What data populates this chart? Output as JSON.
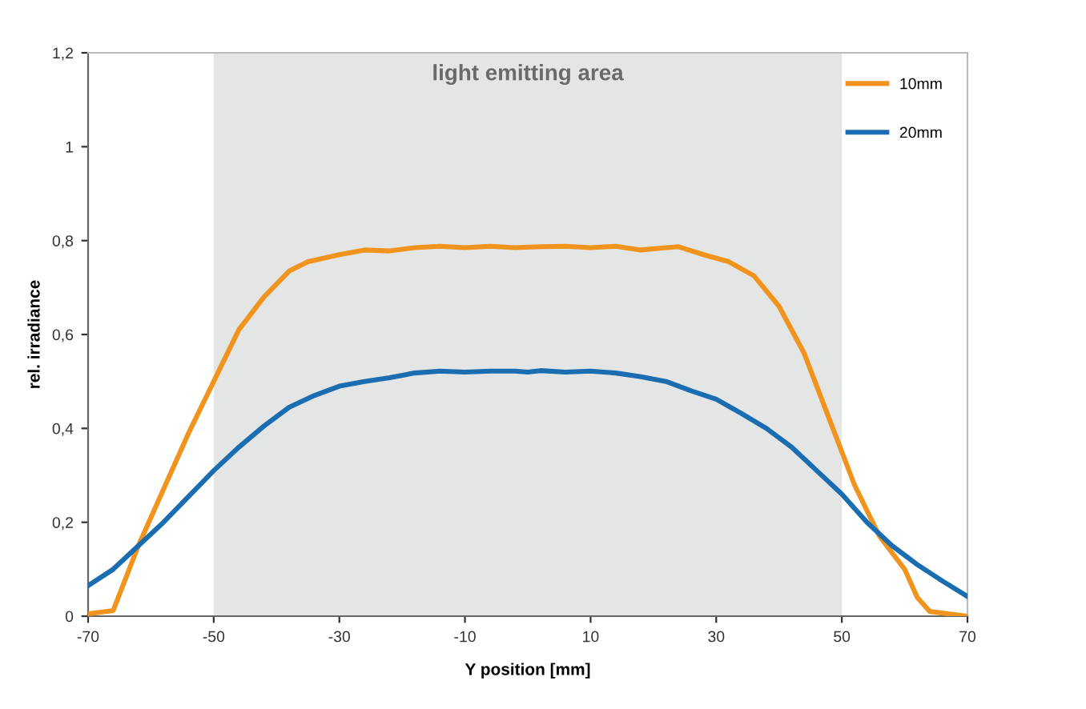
{
  "chart_data": {
    "type": "line",
    "xlabel": "Y position [mm]",
    "ylabel": "rel. irradiance",
    "xlim": [
      -70,
      70
    ],
    "xticks": [
      -70,
      -50,
      -30,
      -10,
      10,
      30,
      50,
      70
    ],
    "ylim": [
      0,
      1.2
    ],
    "yticks": [
      0,
      {
        "value": 0.2,
        "label": "0,2"
      },
      {
        "value": 0.4,
        "label": "0,4"
      },
      {
        "value": 0.6,
        "label": "0,6"
      },
      {
        "value": 0.8,
        "label": "0,8"
      },
      1,
      {
        "value": 1.2,
        "label": "1,2"
      }
    ],
    "grid": false,
    "legend": "top right",
    "marker": "none",
    "line_style": "solid",
    "bands": [
      {
        "axis": "x",
        "from": -50,
        "to": 50,
        "label": "light emitting area",
        "color": "#e4e5e5"
      }
    ],
    "series": [
      {
        "name": "10mm",
        "color": "#f0941e",
        "x": [
          -70,
          -66,
          -62,
          -58,
          -54,
          -50,
          -46,
          -42,
          -38,
          -35,
          -30,
          -26,
          -22,
          -18,
          -14,
          -10,
          -6,
          -2,
          2,
          6,
          10,
          14,
          18,
          22,
          24,
          28,
          32,
          36,
          40,
          44,
          48,
          52,
          56,
          60,
          62,
          64,
          70
        ],
        "values": [
          0.005,
          0.012,
          0.15,
          0.27,
          0.39,
          0.5,
          0.61,
          0.68,
          0.735,
          0.755,
          0.77,
          0.78,
          0.778,
          0.785,
          0.788,
          0.785,
          0.788,
          0.785,
          0.787,
          0.788,
          0.785,
          0.788,
          0.78,
          0.785,
          0.787,
          0.77,
          0.755,
          0.725,
          0.66,
          0.56,
          0.42,
          0.28,
          0.17,
          0.1,
          0.04,
          0.01,
          0
        ]
      },
      {
        "name": "20mm",
        "color": "#1b6db1",
        "x": [
          -70,
          -66,
          -62,
          -58,
          -54,
          -50,
          -46,
          -42,
          -38,
          -34,
          -30,
          -26,
          -22,
          -18,
          -14,
          -10,
          -6,
          -2,
          0,
          2,
          6,
          10,
          14,
          18,
          22,
          26,
          30,
          34,
          38,
          42,
          46,
          50,
          54,
          58,
          62,
          66,
          70
        ],
        "values": [
          0.065,
          0.1,
          0.15,
          0.2,
          0.255,
          0.31,
          0.36,
          0.405,
          0.445,
          0.47,
          0.49,
          0.5,
          0.508,
          0.518,
          0.522,
          0.52,
          0.522,
          0.522,
          0.52,
          0.523,
          0.52,
          0.522,
          0.518,
          0.51,
          0.5,
          0.48,
          0.462,
          0.432,
          0.4,
          0.36,
          0.31,
          0.26,
          0.2,
          0.15,
          0.11,
          0.075,
          0.042
        ]
      }
    ]
  }
}
